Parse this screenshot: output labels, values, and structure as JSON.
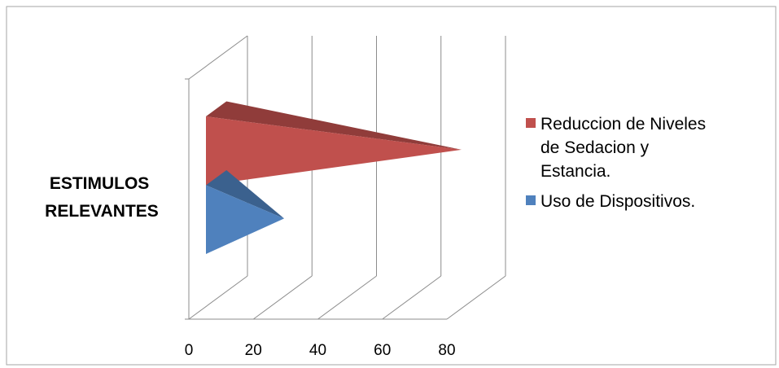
{
  "chart_data": {
    "type": "bar",
    "categories": [
      "ESTIMULOS RELEVANTES"
    ],
    "category_lines": [
      "ESTIMULOS",
      "RELEVANTES"
    ],
    "series": [
      {
        "name": "Uso de Dispositivos.",
        "values": [
          25
        ],
        "color": "#4f81bd"
      },
      {
        "name": "Reduccion de Niveles de Sedacion y Estancia.",
        "legend_lines": [
          "Reduccion de Niveles",
          "de Sedacion y",
          "Estancia."
        ],
        "values": [
          80
        ],
        "color": "#c0504d"
      }
    ],
    "x_ticks": [
      "0",
      "20",
      "40",
      "60",
      "80"
    ],
    "xlim": [
      0,
      80
    ],
    "grid": true,
    "legend_position": "right",
    "title": "",
    "xlabel": "",
    "ylabel": ""
  }
}
